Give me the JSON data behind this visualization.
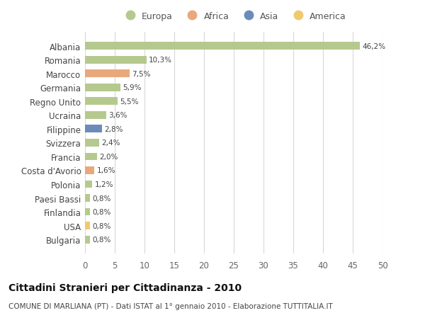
{
  "categories": [
    "Albania",
    "Romania",
    "Marocco",
    "Germania",
    "Regno Unito",
    "Ucraina",
    "Filippine",
    "Svizzera",
    "Francia",
    "Costa d'Avorio",
    "Polonia",
    "Paesi Bassi",
    "Finlandia",
    "USA",
    "Bulgaria"
  ],
  "values": [
    46.2,
    10.3,
    7.5,
    5.9,
    5.5,
    3.6,
    2.8,
    2.4,
    2.0,
    1.6,
    1.2,
    0.8,
    0.8,
    0.8,
    0.8
  ],
  "labels": [
    "46,2%",
    "10,3%",
    "7,5%",
    "5,9%",
    "5,5%",
    "3,6%",
    "2,8%",
    "2,4%",
    "2,0%",
    "1,6%",
    "1,2%",
    "0,8%",
    "0,8%",
    "0,8%",
    "0,8%"
  ],
  "colors": [
    "#b5c98e",
    "#b5c98e",
    "#e8a87c",
    "#b5c98e",
    "#b5c98e",
    "#b5c98e",
    "#6b8cba",
    "#b5c98e",
    "#b5c98e",
    "#e8a87c",
    "#b5c98e",
    "#b5c98e",
    "#b5c98e",
    "#f0c96e",
    "#b5c98e"
  ],
  "continent_colors": {
    "Europa": "#b5c98e",
    "Africa": "#e8a87c",
    "Asia": "#6b8cba",
    "America": "#f0c96e"
  },
  "title": "Cittadini Stranieri per Cittadinanza - 2010",
  "subtitle": "COMUNE DI MARLIANA (PT) - Dati ISTAT al 1° gennaio 2010 - Elaborazione TUTTITALIA.IT",
  "xlim": [
    0,
    50
  ],
  "xticks": [
    0,
    5,
    10,
    15,
    20,
    25,
    30,
    35,
    40,
    45,
    50
  ],
  "background_color": "#ffffff",
  "grid_color": "#d8d8d8",
  "bar_height": 0.55
}
